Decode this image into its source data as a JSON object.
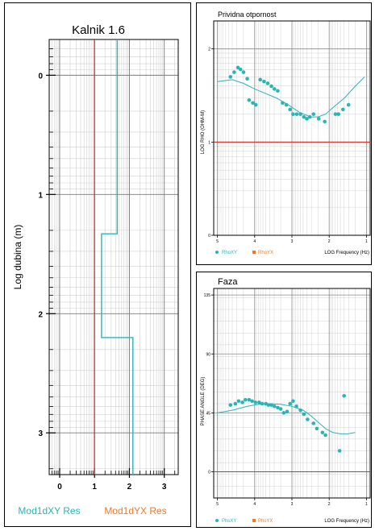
{
  "left_chart": {
    "title": "Kalnik 1.6",
    "ylabel": "Log dubina (m)",
    "xticks": [
      "0",
      "1",
      "2",
      "3"
    ],
    "yticks": [
      "0",
      "1",
      "2",
      "3"
    ],
    "legend": {
      "series1": "Mod1dXY Res",
      "series2": "Mod1dYX Res"
    },
    "colors": {
      "xy": "#2ab5b5",
      "yx": "#e0281e",
      "legend_yx": "#ec7a2c"
    }
  },
  "rho_chart": {
    "title": "Prividna otpornost",
    "ylabel": "LOG RHO (OHM-M)",
    "xlabel": "LOG Frequency (Hz)",
    "xticks": [
      "5",
      "4",
      "3",
      "2",
      "1"
    ],
    "yticks": [
      "2",
      "1",
      "0"
    ],
    "legend": {
      "series1": "RhoXY",
      "series2": "RhoYX"
    },
    "colors": {
      "xy": "#2ab5b5",
      "yx": "#e0281e",
      "legend_yx": "#ec7a2c"
    }
  },
  "phase_chart": {
    "title": "Faza",
    "ylabel": "PHASE ANGLE (DEG)",
    "xlabel": "LOG Frequency (Hz)",
    "xticks": [
      "5",
      "4",
      "3",
      "2",
      "1"
    ],
    "yticks": [
      "135",
      "90",
      "45",
      "0"
    ],
    "legend": {
      "series1": "PhsXY",
      "series2": "PhsYX"
    },
    "colors": {
      "xy": "#2ab5b5",
      "yx": "#e0281e",
      "legend_yx": "#ec7a2c"
    }
  },
  "chart_data": [
    {
      "type": "line",
      "title": "Kalnik 1.6",
      "xlabel": "",
      "ylabel": "Log dubina (m)",
      "xlim": [
        -0.3,
        3.4
      ],
      "ylim": [
        -0.3,
        3.35
      ],
      "y_inverted": true,
      "x_scale": "log",
      "series": [
        {
          "name": "Mod1dXY Res",
          "x": [
            1.65,
            1.65,
            1.2,
            1.2,
            1.65,
            1.65,
            2.1,
            2.1
          ],
          "y": [
            -0.3,
            1.33,
            1.33,
            2.2,
            2.2,
            2.2,
            2.2,
            3.35
          ]
        },
        {
          "name": "Mod1dYX Res",
          "x": [
            1.0,
            1.0
          ],
          "y": [
            -0.3,
            3.35
          ]
        }
      ]
    },
    {
      "type": "scatter",
      "title": "Prividna otpornost",
      "xlabel": "LOG Frequency (Hz)",
      "ylabel": "LOG RHO (OHM-M)",
      "xlim": [
        5.1,
        0.9
      ],
      "ylim": [
        0,
        2.3
      ],
      "x_scale": "log",
      "y_scale": "log",
      "series": [
        {
          "name": "RhoXY",
          "x": [
            4.65,
            4.55,
            4.45,
            4.38,
            4.3,
            4.2,
            4.15,
            4.05,
            3.97,
            3.85,
            3.75,
            3.65,
            3.55,
            3.47,
            3.38,
            3.25,
            3.15,
            3.05,
            2.97,
            2.87,
            2.77,
            2.68,
            2.6,
            2.52,
            2.42,
            2.28,
            2.12,
            1.83,
            1.75,
            1.63,
            1.48
          ],
          "y": [
            1.7,
            1.75,
            1.8,
            1.78,
            1.75,
            1.68,
            1.45,
            1.42,
            1.4,
            1.67,
            1.65,
            1.63,
            1.6,
            1.57,
            1.55,
            1.42,
            1.4,
            1.35,
            1.3,
            1.3,
            1.3,
            1.27,
            1.25,
            1.27,
            1.3,
            1.25,
            1.22,
            1.3,
            1.3,
            1.35,
            1.4
          ]
        },
        {
          "name": "RhoYX",
          "x": [],
          "y": []
        },
        {
          "name": "model",
          "x": [
            5.0,
            4.6,
            4.3,
            4.0,
            3.7,
            3.4,
            3.1,
            2.8,
            2.5,
            2.3,
            2.1,
            1.9,
            1.6,
            1.3,
            1.05
          ],
          "y": [
            1.65,
            1.67,
            1.63,
            1.57,
            1.52,
            1.47,
            1.4,
            1.32,
            1.27,
            1.27,
            1.3,
            1.37,
            1.47,
            1.6,
            1.7
          ]
        }
      ]
    },
    {
      "type": "scatter",
      "title": "Faza",
      "xlabel": "LOG Frequency (Hz)",
      "ylabel": "PHASE ANGLE (DEG)",
      "xlim": [
        5.1,
        0.9
      ],
      "ylim": [
        -20,
        140
      ],
      "x_scale": "log",
      "series": [
        {
          "name": "PhsXY",
          "x": [
            4.65,
            4.52,
            4.43,
            4.33,
            4.25,
            4.15,
            4.07,
            3.98,
            3.88,
            3.8,
            3.7,
            3.63,
            3.55,
            3.47,
            3.38,
            3.3,
            3.22,
            3.13,
            3.05,
            2.97,
            2.88,
            2.77,
            2.68,
            2.58,
            2.42,
            2.33,
            2.18,
            2.1,
            1.72,
            1.6
          ],
          "y": [
            51,
            52,
            54,
            53,
            55,
            55,
            54,
            53,
            53,
            52,
            52,
            51,
            51,
            50,
            49,
            48,
            45,
            46,
            52,
            54,
            50,
            47,
            44,
            40,
            37,
            33,
            30,
            28,
            16,
            58
          ]
        },
        {
          "name": "PhsYX",
          "x": [],
          "y": []
        },
        {
          "name": "model",
          "x": [
            5.0,
            4.6,
            4.2,
            3.9,
            3.6,
            3.3,
            3.0,
            2.7,
            2.5,
            2.3,
            2.1,
            1.9,
            1.7,
            1.5,
            1.3
          ],
          "y": [
            45,
            47,
            50,
            51.5,
            52,
            51.5,
            50,
            47,
            43,
            38,
            33,
            30,
            29,
            29,
            30
          ]
        }
      ]
    }
  ]
}
